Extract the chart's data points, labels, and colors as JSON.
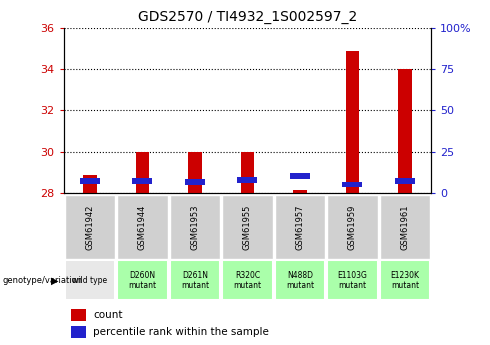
{
  "title": "GDS2570 / TI4932_1S002597_2",
  "samples": [
    "GSM61942",
    "GSM61944",
    "GSM61953",
    "GSM61955",
    "GSM61957",
    "GSM61959",
    "GSM61961"
  ],
  "genotypes": [
    "wild type",
    "D260N\nmutant",
    "D261N\nmutant",
    "R320C\nmutant",
    "N488D\nmutant",
    "E1103G\nmutant",
    "E1230K\nmutant"
  ],
  "counts": [
    28.9,
    30.0,
    30.0,
    30.0,
    28.15,
    34.85,
    34.0
  ],
  "count_base": 28.0,
  "percentile_ranks": [
    5.5,
    5.5,
    5.0,
    6.0,
    8.5,
    3.5,
    5.5
  ],
  "ylim_left": [
    28,
    36
  ],
  "ylim_right": [
    0,
    100
  ],
  "yticks_left": [
    28,
    30,
    32,
    34,
    36
  ],
  "ytick_right_labels": [
    "0",
    "25",
    "50",
    "75",
    "100%"
  ],
  "bar_color_red": "#cc0000",
  "bar_color_blue": "#2222cc",
  "genotype_bg_wildtype": "#e8e8e8",
  "genotype_bg_mutant": "#aaffaa",
  "sample_bg": "#d0d0d0",
  "legend_label_red": "count",
  "legend_label_blue": "percentile rank within the sample"
}
